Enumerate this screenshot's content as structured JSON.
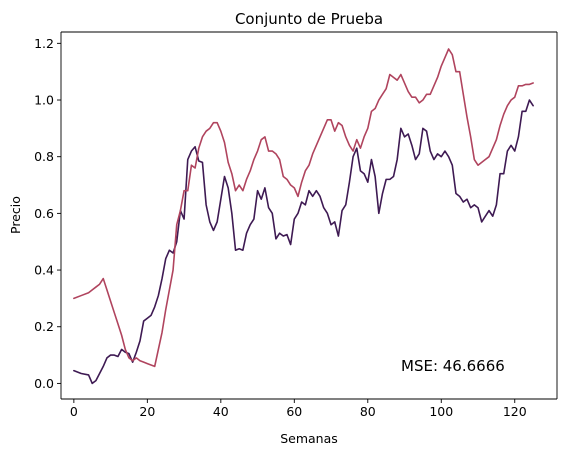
{
  "chart_data": {
    "type": "line",
    "title": "Conjunto de Prueba",
    "xlabel": "Semanas",
    "ylabel": "Precio",
    "xlim": [
      -3.5,
      131.5
    ],
    "ylim": [
      -0.055,
      1.24
    ],
    "xticks": [
      0,
      20,
      40,
      60,
      80,
      100,
      120
    ],
    "xtick_labels": [
      "0",
      "20",
      "40",
      "60",
      "80",
      "100",
      "120"
    ],
    "yticks": [
      0.0,
      0.2,
      0.4,
      0.6,
      0.8,
      1.0,
      1.2
    ],
    "ytick_labels": [
      "0.0",
      "0.2",
      "0.4",
      "0.6",
      "0.8",
      "1.0",
      "1.2"
    ],
    "grid": false,
    "annotation": "MSE: 46.6666",
    "series": [
      {
        "color": "#3e1a53",
        "x": [
          0,
          2,
          4,
          5,
          6,
          7,
          8,
          9,
          10,
          11,
          12,
          13,
          14,
          15,
          16,
          17,
          18,
          19,
          20,
          21,
          22,
          23,
          24,
          25,
          26,
          27,
          28,
          29,
          30,
          31,
          32,
          33,
          34,
          35,
          36,
          37,
          38,
          39,
          40,
          41,
          42,
          43,
          44,
          45,
          46,
          47,
          48,
          49,
          50,
          51,
          52,
          53,
          54,
          55,
          56,
          57,
          58,
          59,
          60,
          61,
          62,
          63,
          64,
          65,
          66,
          67,
          68,
          69,
          70,
          71,
          72,
          73,
          74,
          75,
          76,
          77,
          78,
          79,
          80,
          81,
          82,
          83,
          84,
          85,
          86,
          87,
          88,
          89,
          90,
          91,
          92,
          93,
          94,
          95,
          96,
          97,
          98,
          99,
          100,
          101,
          102,
          103,
          104,
          105,
          106,
          107,
          108,
          109,
          110,
          111,
          112,
          113,
          114,
          115,
          116,
          117,
          118,
          119,
          120,
          121,
          122,
          123,
          124,
          125
        ],
        "y": [
          0.045,
          0.035,
          0.03,
          0.0,
          0.01,
          0.035,
          0.06,
          0.09,
          0.1,
          0.1,
          0.095,
          0.12,
          0.11,
          0.105,
          0.075,
          0.11,
          0.15,
          0.22,
          0.23,
          0.24,
          0.27,
          0.31,
          0.37,
          0.44,
          0.47,
          0.46,
          0.5,
          0.61,
          0.58,
          0.79,
          0.82,
          0.835,
          0.785,
          0.78,
          0.63,
          0.57,
          0.54,
          0.57,
          0.65,
          0.73,
          0.69,
          0.6,
          0.47,
          0.475,
          0.47,
          0.53,
          0.56,
          0.58,
          0.68,
          0.65,
          0.69,
          0.62,
          0.6,
          0.51,
          0.53,
          0.52,
          0.525,
          0.49,
          0.58,
          0.6,
          0.64,
          0.63,
          0.68,
          0.66,
          0.68,
          0.66,
          0.62,
          0.6,
          0.56,
          0.57,
          0.52,
          0.61,
          0.63,
          0.71,
          0.8,
          0.83,
          0.75,
          0.74,
          0.71,
          0.79,
          0.73,
          0.6,
          0.67,
          0.72,
          0.72,
          0.73,
          0.79,
          0.9,
          0.87,
          0.88,
          0.84,
          0.79,
          0.81,
          0.9,
          0.89,
          0.82,
          0.79,
          0.81,
          0.8,
          0.82,
          0.8,
          0.77,
          0.67,
          0.66,
          0.64,
          0.65,
          0.62,
          0.63,
          0.62,
          0.57,
          0.59,
          0.61,
          0.59,
          0.63,
          0.74,
          0.74,
          0.82,
          0.84,
          0.82,
          0.87,
          0.96,
          0.96,
          1.0,
          0.98
        ]
      },
      {
        "color": "#b0445e",
        "x": [
          0,
          2,
          4,
          5,
          6,
          7,
          8,
          9,
          10,
          11,
          12,
          13,
          14,
          15,
          16,
          17,
          18,
          19,
          20,
          21,
          22,
          23,
          24,
          25,
          26,
          27,
          28,
          29,
          30,
          31,
          32,
          33,
          34,
          35,
          36,
          37,
          38,
          39,
          40,
          41,
          42,
          43,
          44,
          45,
          46,
          47,
          48,
          49,
          50,
          51,
          52,
          53,
          54,
          55,
          56,
          57,
          58,
          59,
          60,
          61,
          62,
          63,
          64,
          65,
          66,
          67,
          68,
          69,
          70,
          71,
          72,
          73,
          74,
          75,
          76,
          77,
          78,
          79,
          80,
          81,
          82,
          83,
          84,
          85,
          86,
          87,
          88,
          89,
          90,
          91,
          92,
          93,
          94,
          95,
          96,
          97,
          98,
          99,
          100,
          101,
          102,
          103,
          104,
          105,
          106,
          107,
          108,
          109,
          110,
          111,
          112,
          113,
          114,
          115,
          116,
          117,
          118,
          119,
          120,
          121,
          122,
          123,
          124,
          125
        ],
        "y": [
          0.3,
          0.31,
          0.32,
          0.33,
          0.34,
          0.35,
          0.37,
          0.33,
          0.29,
          0.25,
          0.21,
          0.17,
          0.12,
          0.09,
          0.08,
          0.09,
          0.08,
          0.075,
          0.07,
          0.065,
          0.06,
          0.12,
          0.18,
          0.26,
          0.33,
          0.4,
          0.56,
          0.61,
          0.68,
          0.68,
          0.77,
          0.76,
          0.83,
          0.87,
          0.89,
          0.9,
          0.92,
          0.92,
          0.89,
          0.85,
          0.78,
          0.74,
          0.68,
          0.7,
          0.68,
          0.72,
          0.75,
          0.79,
          0.82,
          0.86,
          0.87,
          0.82,
          0.82,
          0.81,
          0.79,
          0.73,
          0.72,
          0.7,
          0.69,
          0.66,
          0.71,
          0.75,
          0.77,
          0.81,
          0.84,
          0.87,
          0.9,
          0.93,
          0.93,
          0.89,
          0.92,
          0.91,
          0.87,
          0.84,
          0.82,
          0.86,
          0.83,
          0.87,
          0.9,
          0.96,
          0.97,
          1.0,
          1.02,
          1.04,
          1.09,
          1.08,
          1.07,
          1.09,
          1.06,
          1.03,
          1.01,
          1.01,
          0.99,
          1.0,
          1.02,
          1.02,
          1.05,
          1.08,
          1.12,
          1.15,
          1.18,
          1.16,
          1.1,
          1.1,
          1.02,
          0.94,
          0.87,
          0.79,
          0.77,
          0.78,
          0.79,
          0.8,
          0.83,
          0.86,
          0.91,
          0.95,
          0.98,
          1.0,
          1.01,
          1.05,
          1.05,
          1.055,
          1.055,
          1.06
        ]
      }
    ]
  }
}
